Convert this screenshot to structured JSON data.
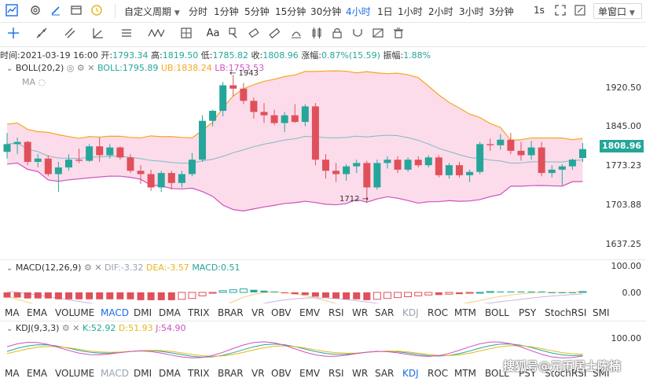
{
  "topbar": {
    "custom_period_label": "自定义周期",
    "periods": [
      "分时",
      "1分钟",
      "5分钟",
      "15分钟",
      "30分钟",
      "4小时",
      "1日",
      "1小时",
      "2小时",
      "3小时",
      "3分钟"
    ],
    "active_period": "4小时",
    "interval_1s": "1s",
    "window_select": "单窗口"
  },
  "toolbar2": {
    "text_tool": "Aa"
  },
  "info": {
    "time_label": "时间:",
    "time": "2021-03-19 16:00",
    "open_label": "开:",
    "open": "1793.34",
    "high_label": "高:",
    "high": "1819.50",
    "low_label": "低:",
    "low": "1785.82",
    "close_label": "收:",
    "close": "1808.96",
    "change_label": "涨幅:",
    "change": "0.87%(15.59)",
    "amp_label": "振幅:",
    "amp": "1.88%"
  },
  "boll": {
    "title": "BOLL(20,2)",
    "boll_label": "BOLL:1795.89",
    "ub_label": "UB:1838.24",
    "lb_label": "LB:1753.53",
    "ma_label": "MA",
    "high_marker": "← 1943",
    "low_marker": "1712 →"
  },
  "price_axis": [
    "1920.50",
    "1845.00",
    "1773.23",
    "1703.88",
    "1637.25"
  ],
  "current_price": "1808.96",
  "macd": {
    "title": "MACD(12,26,9)",
    "dif": "DIF:-3.32",
    "dea": "DEA:-3.57",
    "macd": "MACD:0.51",
    "axis": [
      "100.00",
      "0.00"
    ]
  },
  "kdj": {
    "title": "KDJ(9,3,3)",
    "k": "K:52.92",
    "d": "D:51.93",
    "j": "J:54.90",
    "axis": [
      "100.00"
    ]
  },
  "indicator_tabs_1": [
    "MA",
    "EMA",
    "VOLUME",
    "MACD",
    "DMI",
    "DMA",
    "TRIX",
    "BRAR",
    "VR",
    "OBV",
    "EMV",
    "RSI",
    "WR",
    "SAR",
    "KDJ",
    "ROC",
    "MTM",
    "BOLL",
    "PSY",
    "StochRSI",
    "SMI"
  ],
  "indicator_tabs_1_active": "MACD",
  "indicator_tabs_1_disabled": "KDJ",
  "indicator_tabs_2": [
    "MA",
    "EMA",
    "VOLUME",
    "MACD",
    "DMI",
    "DMA",
    "TRIX",
    "BRAR",
    "VR",
    "OBV",
    "EMV",
    "RSI",
    "WR",
    "SAR",
    "KDJ",
    "ROC",
    "MTM",
    "BOLL",
    "PSY",
    "StochRSI",
    "SMI"
  ],
  "indicator_tabs_2_active": "KDJ",
  "indicator_tabs_2_disabled": "MACD",
  "watermark": "搜狐号@元币居士陈楠",
  "colors": {
    "up": "#26a69a",
    "down": "#e0505a",
    "band_fill": "#fcdcea",
    "ub_line": "#f5a623",
    "lb_line": "#d050c0",
    "mid_line": "#7fb8c9",
    "accent": "#1a6de8"
  },
  "candles": [
    {
      "o": 1804,
      "h": 1838,
      "l": 1792,
      "c": 1818
    },
    {
      "o": 1818,
      "h": 1830,
      "l": 1800,
      "c": 1822
    },
    {
      "o": 1822,
      "h": 1824,
      "l": 1780,
      "c": 1786
    },
    {
      "o": 1786,
      "h": 1800,
      "l": 1776,
      "c": 1792
    },
    {
      "o": 1792,
      "h": 1798,
      "l": 1760,
      "c": 1764
    },
    {
      "o": 1764,
      "h": 1786,
      "l": 1732,
      "c": 1776
    },
    {
      "o": 1776,
      "h": 1800,
      "l": 1770,
      "c": 1790
    },
    {
      "o": 1790,
      "h": 1810,
      "l": 1784,
      "c": 1788
    },
    {
      "o": 1788,
      "h": 1818,
      "l": 1786,
      "c": 1814
    },
    {
      "o": 1814,
      "h": 1830,
      "l": 1786,
      "c": 1798
    },
    {
      "o": 1798,
      "h": 1818,
      "l": 1792,
      "c": 1812
    },
    {
      "o": 1812,
      "h": 1814,
      "l": 1790,
      "c": 1794
    },
    {
      "o": 1794,
      "h": 1800,
      "l": 1766,
      "c": 1770
    },
    {
      "o": 1770,
      "h": 1780,
      "l": 1746,
      "c": 1764
    },
    {
      "o": 1764,
      "h": 1772,
      "l": 1734,
      "c": 1740
    },
    {
      "o": 1740,
      "h": 1770,
      "l": 1732,
      "c": 1766
    },
    {
      "o": 1766,
      "h": 1770,
      "l": 1736,
      "c": 1748
    },
    {
      "o": 1748,
      "h": 1770,
      "l": 1740,
      "c": 1764
    },
    {
      "o": 1764,
      "h": 1802,
      "l": 1760,
      "c": 1790
    },
    {
      "o": 1790,
      "h": 1870,
      "l": 1786,
      "c": 1860
    },
    {
      "o": 1860,
      "h": 1880,
      "l": 1850,
      "c": 1878
    },
    {
      "o": 1878,
      "h": 1930,
      "l": 1868,
      "c": 1924
    },
    {
      "o": 1924,
      "h": 1943,
      "l": 1904,
      "c": 1918
    },
    {
      "o": 1918,
      "h": 1928,
      "l": 1890,
      "c": 1896
    },
    {
      "o": 1896,
      "h": 1902,
      "l": 1864,
      "c": 1876
    },
    {
      "o": 1876,
      "h": 1892,
      "l": 1856,
      "c": 1870
    },
    {
      "o": 1870,
      "h": 1880,
      "l": 1852,
      "c": 1856
    },
    {
      "o": 1856,
      "h": 1876,
      "l": 1840,
      "c": 1870
    },
    {
      "o": 1870,
      "h": 1890,
      "l": 1856,
      "c": 1858
    },
    {
      "o": 1858,
      "h": 1890,
      "l": 1850,
      "c": 1886
    },
    {
      "o": 1886,
      "h": 1892,
      "l": 1780,
      "c": 1790
    },
    {
      "o": 1790,
      "h": 1800,
      "l": 1756,
      "c": 1770
    },
    {
      "o": 1770,
      "h": 1784,
      "l": 1750,
      "c": 1764
    },
    {
      "o": 1764,
      "h": 1782,
      "l": 1752,
      "c": 1778
    },
    {
      "o": 1778,
      "h": 1790,
      "l": 1766,
      "c": 1784
    },
    {
      "o": 1784,
      "h": 1788,
      "l": 1712,
      "c": 1740
    },
    {
      "o": 1740,
      "h": 1790,
      "l": 1736,
      "c": 1784
    },
    {
      "o": 1784,
      "h": 1796,
      "l": 1774,
      "c": 1790
    },
    {
      "o": 1790,
      "h": 1796,
      "l": 1766,
      "c": 1772
    },
    {
      "o": 1772,
      "h": 1794,
      "l": 1768,
      "c": 1790
    },
    {
      "o": 1790,
      "h": 1796,
      "l": 1776,
      "c": 1780
    },
    {
      "o": 1780,
      "h": 1798,
      "l": 1776,
      "c": 1794
    },
    {
      "o": 1794,
      "h": 1798,
      "l": 1758,
      "c": 1762
    },
    {
      "o": 1762,
      "h": 1784,
      "l": 1756,
      "c": 1780
    },
    {
      "o": 1780,
      "h": 1786,
      "l": 1758,
      "c": 1762
    },
    {
      "o": 1762,
      "h": 1772,
      "l": 1750,
      "c": 1768
    },
    {
      "o": 1768,
      "h": 1822,
      "l": 1764,
      "c": 1818
    },
    {
      "o": 1818,
      "h": 1828,
      "l": 1806,
      "c": 1816
    },
    {
      "o": 1816,
      "h": 1836,
      "l": 1808,
      "c": 1826
    },
    {
      "o": 1826,
      "h": 1838,
      "l": 1800,
      "c": 1806
    },
    {
      "o": 1806,
      "h": 1822,
      "l": 1788,
      "c": 1798
    },
    {
      "o": 1798,
      "h": 1824,
      "l": 1790,
      "c": 1812
    },
    {
      "o": 1812,
      "h": 1822,
      "l": 1760,
      "c": 1766
    },
    {
      "o": 1766,
      "h": 1780,
      "l": 1758,
      "c": 1772
    },
    {
      "o": 1772,
      "h": 1782,
      "l": 1744,
      "c": 1778
    },
    {
      "o": 1778,
      "h": 1792,
      "l": 1772,
      "c": 1790
    },
    {
      "o": 1793,
      "h": 1820,
      "l": 1786,
      "c": 1809
    }
  ],
  "macd_hist": [
    -6,
    -6,
    -7,
    -7,
    -7,
    -8,
    -8,
    -8,
    -8,
    -8,
    -8,
    -8,
    -8,
    -9,
    -9,
    -9,
    -9,
    -8,
    -7,
    -4,
    -1,
    2,
    3,
    4,
    3,
    2,
    1,
    -1,
    -2,
    -3,
    -5,
    -6,
    -7,
    -8,
    -8,
    -9,
    -8,
    -7,
    -6,
    -5,
    -4,
    -3,
    -3,
    -2,
    -2,
    -1,
    0,
    1,
    1,
    1,
    1,
    1,
    1,
    0,
    0,
    0,
    1
  ]
}
